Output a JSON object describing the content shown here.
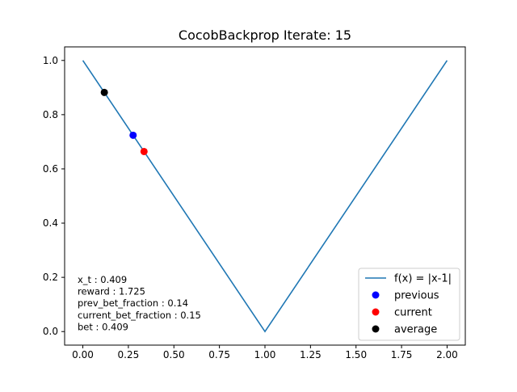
{
  "chart_data": {
    "type": "line",
    "title": "CocobBackprop Iterate: 15",
    "xlabel": "",
    "ylabel": "",
    "xlim": [
      -0.1,
      2.1
    ],
    "ylim": [
      -0.05,
      1.05
    ],
    "x_ticks": [
      "0.00",
      "0.25",
      "0.50",
      "0.75",
      "1.00",
      "1.25",
      "1.50",
      "1.75",
      "2.00"
    ],
    "y_ticks": [
      "0.0",
      "0.2",
      "0.4",
      "0.6",
      "0.8",
      "1.0"
    ],
    "x_tick_values": [
      0,
      0.25,
      0.5,
      0.75,
      1.0,
      1.25,
      1.5,
      1.75,
      2.0
    ],
    "y_tick_values": [
      0,
      0.2,
      0.4,
      0.6,
      0.8,
      1.0
    ],
    "grid": false,
    "legend_position": "lower-right",
    "series": [
      {
        "name": "f(x) = |x-1|",
        "kind": "line",
        "color": "#1f77b4",
        "x": [
          0,
          1,
          2
        ],
        "y": [
          1,
          0,
          1
        ]
      },
      {
        "name": "previous",
        "kind": "point",
        "color": "#0000ff",
        "x": [
          0.276
        ],
        "y": [
          0.724
        ]
      },
      {
        "name": "current",
        "kind": "point",
        "color": "#ff0000",
        "x": [
          0.336
        ],
        "y": [
          0.664
        ]
      },
      {
        "name": "average",
        "kind": "point",
        "color": "#000000",
        "x": [
          0.118
        ],
        "y": [
          0.882
        ]
      }
    ],
    "annotations": [
      "x_t : 0.409",
      "reward : 1.725",
      "prev_bet_fraction : 0.14",
      "current_bet_fraction : 0.15",
      "bet : 0.409"
    ]
  }
}
